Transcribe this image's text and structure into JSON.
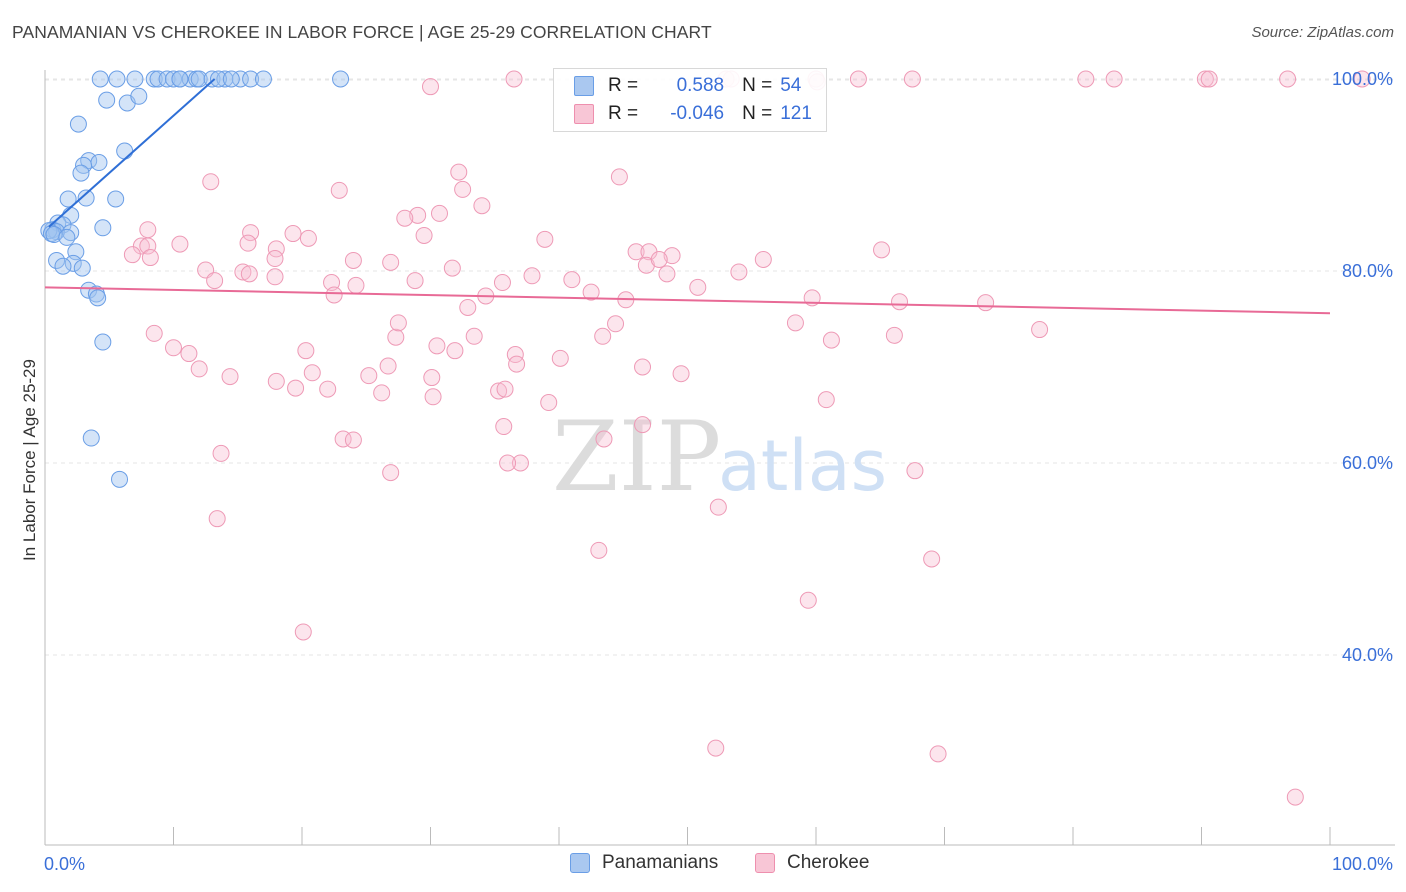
{
  "header": {
    "title": "PANAMANIAN VS CHEROKEE IN LABOR FORCE | AGE 25-29 CORRELATION CHART",
    "source": "Source: ZipAtlas.com"
  },
  "legend": {
    "r_label": "R =",
    "n_label": "N =",
    "series": [
      {
        "name": "Panamanians",
        "r": "0.588",
        "n": "54",
        "fill": "#aac8f0",
        "stroke": "#6a9ee6"
      },
      {
        "name": "Cherokee",
        "r": "-0.046",
        "n": "121",
        "fill": "#f8c6d6",
        "stroke": "#ee8fae"
      }
    ]
  },
  "watermark": {
    "zip": "ZIP",
    "atlas": "atlas"
  },
  "chart_data": {
    "type": "scatter",
    "title": "PANAMANIAN VS CHEROKEE IN LABOR FORCE | AGE 25-29 CORRELATION CHART",
    "xlabel": "",
    "ylabel": "In Labor Force | Age 25-29",
    "xlim": [
      0,
      100
    ],
    "ylim": [
      20,
      102
    ],
    "x_tick_labels": [
      "0.0%",
      "100.0%"
    ],
    "y_ticks": [
      40,
      60,
      80,
      100
    ],
    "y_tick_labels": [
      "40.0%",
      "60.0%",
      "80.0%",
      "100.0%"
    ],
    "series": [
      {
        "name": "Panamanians",
        "color": "#5b8fe0",
        "trendline": {
          "x": [
            0.3,
            13.2
          ],
          "y": [
            84.6,
            100.0
          ],
          "color": "#2f6fd6"
        },
        "points": [
          [
            4.3,
            100
          ],
          [
            5.6,
            100
          ],
          [
            7.0,
            100
          ],
          [
            8.5,
            100
          ],
          [
            8.8,
            100
          ],
          [
            9.5,
            100
          ],
          [
            10.0,
            100
          ],
          [
            10.5,
            100
          ],
          [
            11.3,
            100
          ],
          [
            11.8,
            100
          ],
          [
            12.0,
            100
          ],
          [
            13.0,
            100
          ],
          [
            14.0,
            100
          ],
          [
            15.2,
            100
          ],
          [
            16.0,
            100
          ],
          [
            17.0,
            100
          ],
          [
            23.0,
            100
          ],
          [
            13.5,
            100
          ],
          [
            14.5,
            100
          ],
          [
            4.8,
            97.8
          ],
          [
            6.4,
            97.5
          ],
          [
            7.3,
            98.2
          ],
          [
            2.6,
            95.3
          ],
          [
            6.2,
            92.5
          ],
          [
            3.4,
            91.5
          ],
          [
            4.2,
            91.3
          ],
          [
            3.0,
            91.0
          ],
          [
            2.8,
            90.2
          ],
          [
            1.8,
            87.5
          ],
          [
            5.5,
            87.5
          ],
          [
            3.2,
            87.6
          ],
          [
            2.0,
            85.8
          ],
          [
            1.0,
            85.0
          ],
          [
            0.6,
            84.3
          ],
          [
            1.4,
            84.8
          ],
          [
            0.9,
            84.1
          ],
          [
            0.3,
            84.2
          ],
          [
            0.5,
            83.9
          ],
          [
            0.7,
            83.8
          ],
          [
            2.0,
            84.0
          ],
          [
            4.5,
            84.5
          ],
          [
            1.7,
            83.5
          ],
          [
            2.4,
            82.0
          ],
          [
            0.9,
            81.1
          ],
          [
            2.2,
            80.8
          ],
          [
            1.4,
            80.5
          ],
          [
            2.9,
            80.3
          ],
          [
            3.4,
            78.0
          ],
          [
            4.0,
            77.6
          ],
          [
            4.1,
            77.2
          ],
          [
            4.5,
            72.6
          ],
          [
            3.6,
            62.6
          ],
          [
            5.8,
            58.3
          ],
          [
            10.5,
            100
          ]
        ]
      },
      {
        "name": "Cherokee",
        "color": "#f0a0bc",
        "trendline": {
          "x": [
            0,
            100
          ],
          "y": [
            78.3,
            75.6
          ],
          "color": "#e86a96"
        },
        "points": [
          [
            36.5,
            100
          ],
          [
            53.0,
            100
          ],
          [
            60.0,
            100
          ],
          [
            53.4,
            100
          ],
          [
            63.3,
            100
          ],
          [
            67.5,
            100
          ],
          [
            81.0,
            100
          ],
          [
            83.2,
            100
          ],
          [
            90.3,
            100
          ],
          [
            90.6,
            100
          ],
          [
            102.5,
            100
          ],
          [
            96.7,
            100
          ],
          [
            60.1,
            99.7
          ],
          [
            30.0,
            99.2
          ],
          [
            32.2,
            90.3
          ],
          [
            44.7,
            89.8
          ],
          [
            12.9,
            89.3
          ],
          [
            32.5,
            88.5
          ],
          [
            34.0,
            86.8
          ],
          [
            22.9,
            88.4
          ],
          [
            29.0,
            85.8
          ],
          [
            30.7,
            86.0
          ],
          [
            28.0,
            85.5
          ],
          [
            8.0,
            84.3
          ],
          [
            16.0,
            84.0
          ],
          [
            19.3,
            83.9
          ],
          [
            29.5,
            83.7
          ],
          [
            38.9,
            83.3
          ],
          [
            20.5,
            83.4
          ],
          [
            15.8,
            82.9
          ],
          [
            7.5,
            82.6
          ],
          [
            8.0,
            82.6
          ],
          [
            10.5,
            82.8
          ],
          [
            18.0,
            82.3
          ],
          [
            46.0,
            82.0
          ],
          [
            47.0,
            82.0
          ],
          [
            48.8,
            81.6
          ],
          [
            65.1,
            82.2
          ],
          [
            8.2,
            81.4
          ],
          [
            6.8,
            81.7
          ],
          [
            17.9,
            81.3
          ],
          [
            24.0,
            81.1
          ],
          [
            26.9,
            80.9
          ],
          [
            12.5,
            80.1
          ],
          [
            15.4,
            79.9
          ],
          [
            15.9,
            79.7
          ],
          [
            17.9,
            79.4
          ],
          [
            28.8,
            79.0
          ],
          [
            31.7,
            80.3
          ],
          [
            37.9,
            79.5
          ],
          [
            13.2,
            79.0
          ],
          [
            22.3,
            78.8
          ],
          [
            24.2,
            78.5
          ],
          [
            35.6,
            78.8
          ],
          [
            22.5,
            77.5
          ],
          [
            34.3,
            77.4
          ],
          [
            45.2,
            77.0
          ],
          [
            59.7,
            77.2
          ],
          [
            73.2,
            76.7
          ],
          [
            77.4,
            73.9
          ],
          [
            58.4,
            74.6
          ],
          [
            66.1,
            73.3
          ],
          [
            61.2,
            72.8
          ],
          [
            30.5,
            72.2
          ],
          [
            31.9,
            71.7
          ],
          [
            36.6,
            71.3
          ],
          [
            40.1,
            70.9
          ],
          [
            36.7,
            70.3
          ],
          [
            46.5,
            70.0
          ],
          [
            49.5,
            69.3
          ],
          [
            20.3,
            71.7
          ],
          [
            30.1,
            68.9
          ],
          [
            22.0,
            67.7
          ],
          [
            35.3,
            67.5
          ],
          [
            35.8,
            67.7
          ],
          [
            30.2,
            66.9
          ],
          [
            26.2,
            67.3
          ],
          [
            60.8,
            66.6
          ],
          [
            39.2,
            66.3
          ],
          [
            35.7,
            63.8
          ],
          [
            23.2,
            62.5
          ],
          [
            13.7,
            61.0
          ],
          [
            24.0,
            62.4
          ],
          [
            46.5,
            64.0
          ],
          [
            43.5,
            62.5
          ],
          [
            37.0,
            60.0
          ],
          [
            36.0,
            60.0
          ],
          [
            26.9,
            59.0
          ],
          [
            67.7,
            59.2
          ],
          [
            52.4,
            55.4
          ],
          [
            13.4,
            54.2
          ],
          [
            43.1,
            50.9
          ],
          [
            69.0,
            50.0
          ],
          [
            59.4,
            45.7
          ],
          [
            20.1,
            42.4
          ],
          [
            52.2,
            30.3
          ],
          [
            69.5,
            29.7
          ],
          [
            97.3,
            25.2
          ],
          [
            8.5,
            73.5
          ],
          [
            10.0,
            72.0
          ],
          [
            11.2,
            71.4
          ],
          [
            12.0,
            69.8
          ],
          [
            14.4,
            69.0
          ],
          [
            18.0,
            68.5
          ],
          [
            19.5,
            67.8
          ],
          [
            20.8,
            69.4
          ],
          [
            25.2,
            69.1
          ],
          [
            26.7,
            70.1
          ],
          [
            27.3,
            73.1
          ],
          [
            27.5,
            74.6
          ],
          [
            32.9,
            76.2
          ],
          [
            33.4,
            73.2
          ],
          [
            41.0,
            79.1
          ],
          [
            42.5,
            77.8
          ],
          [
            43.4,
            73.2
          ],
          [
            44.4,
            74.5
          ],
          [
            46.8,
            80.6
          ],
          [
            47.8,
            81.2
          ],
          [
            48.4,
            79.7
          ],
          [
            50.8,
            78.3
          ],
          [
            54.0,
            79.9
          ],
          [
            55.9,
            81.2
          ],
          [
            66.5,
            76.8
          ]
        ]
      }
    ]
  }
}
